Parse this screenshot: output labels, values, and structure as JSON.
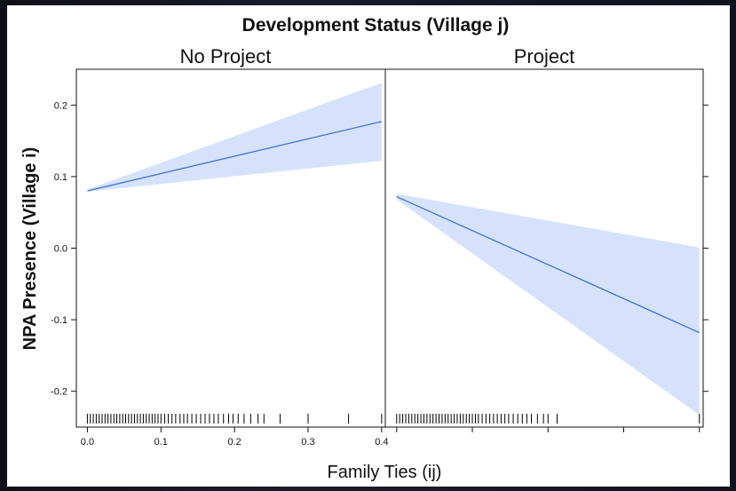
{
  "chart_data": {
    "type": "line",
    "title": "Development Status (Village j)",
    "xlabel": "Family Ties (ij)",
    "ylabel": "NPA Presence (Village i)",
    "xlim": [
      -0.015,
      0.405
    ],
    "ylim": [
      -0.25,
      0.25
    ],
    "x_ticks": [
      "0.0",
      "0.1",
      "0.2",
      "0.3",
      "0.4"
    ],
    "x_tick_values": [
      0.0,
      0.1,
      0.2,
      0.3,
      0.4
    ],
    "y_ticks": [
      "0.2",
      "0.1",
      "0.0",
      "-0.1",
      "-0.2"
    ],
    "y_tick_values": [
      0.2,
      0.1,
      0.0,
      -0.1,
      -0.2
    ],
    "band_color": "#d6e2fb",
    "line_color": "#3d75d4",
    "panels": [
      {
        "title": "No Project",
        "x": [
          0.0,
          0.4
        ],
        "y": [
          0.08,
          0.177
        ],
        "lower": [
          0.079,
          0.122
        ],
        "upper": [
          0.082,
          0.231
        ],
        "rug": [
          0.0,
          0.004,
          0.008,
          0.012,
          0.016,
          0.02,
          0.024,
          0.028,
          0.032,
          0.036,
          0.04,
          0.044,
          0.048,
          0.052,
          0.056,
          0.06,
          0.064,
          0.068,
          0.072,
          0.076,
          0.08,
          0.084,
          0.088,
          0.092,
          0.096,
          0.1,
          0.105,
          0.11,
          0.115,
          0.12,
          0.126,
          0.131,
          0.136,
          0.142,
          0.148,
          0.154,
          0.16,
          0.166,
          0.172,
          0.178,
          0.185,
          0.192,
          0.198,
          0.205,
          0.213,
          0.222,
          0.232,
          0.24,
          0.262,
          0.3,
          0.355,
          0.4
        ]
      },
      {
        "title": "Project",
        "x": [
          0.0,
          0.4
        ],
        "y": [
          0.072,
          -0.118
        ],
        "lower": [
          0.068,
          -0.233
        ],
        "upper": [
          0.076,
          0.001
        ],
        "rug": [
          0.0,
          0.004,
          0.008,
          0.012,
          0.016,
          0.02,
          0.024,
          0.028,
          0.032,
          0.036,
          0.04,
          0.044,
          0.048,
          0.052,
          0.056,
          0.06,
          0.064,
          0.068,
          0.072,
          0.076,
          0.08,
          0.084,
          0.088,
          0.092,
          0.096,
          0.1,
          0.104,
          0.108,
          0.113,
          0.118,
          0.123,
          0.128,
          0.133,
          0.138,
          0.143,
          0.148,
          0.154,
          0.16,
          0.166,
          0.172,
          0.178,
          0.186,
          0.194,
          0.2,
          0.212,
          0.4
        ]
      }
    ]
  }
}
